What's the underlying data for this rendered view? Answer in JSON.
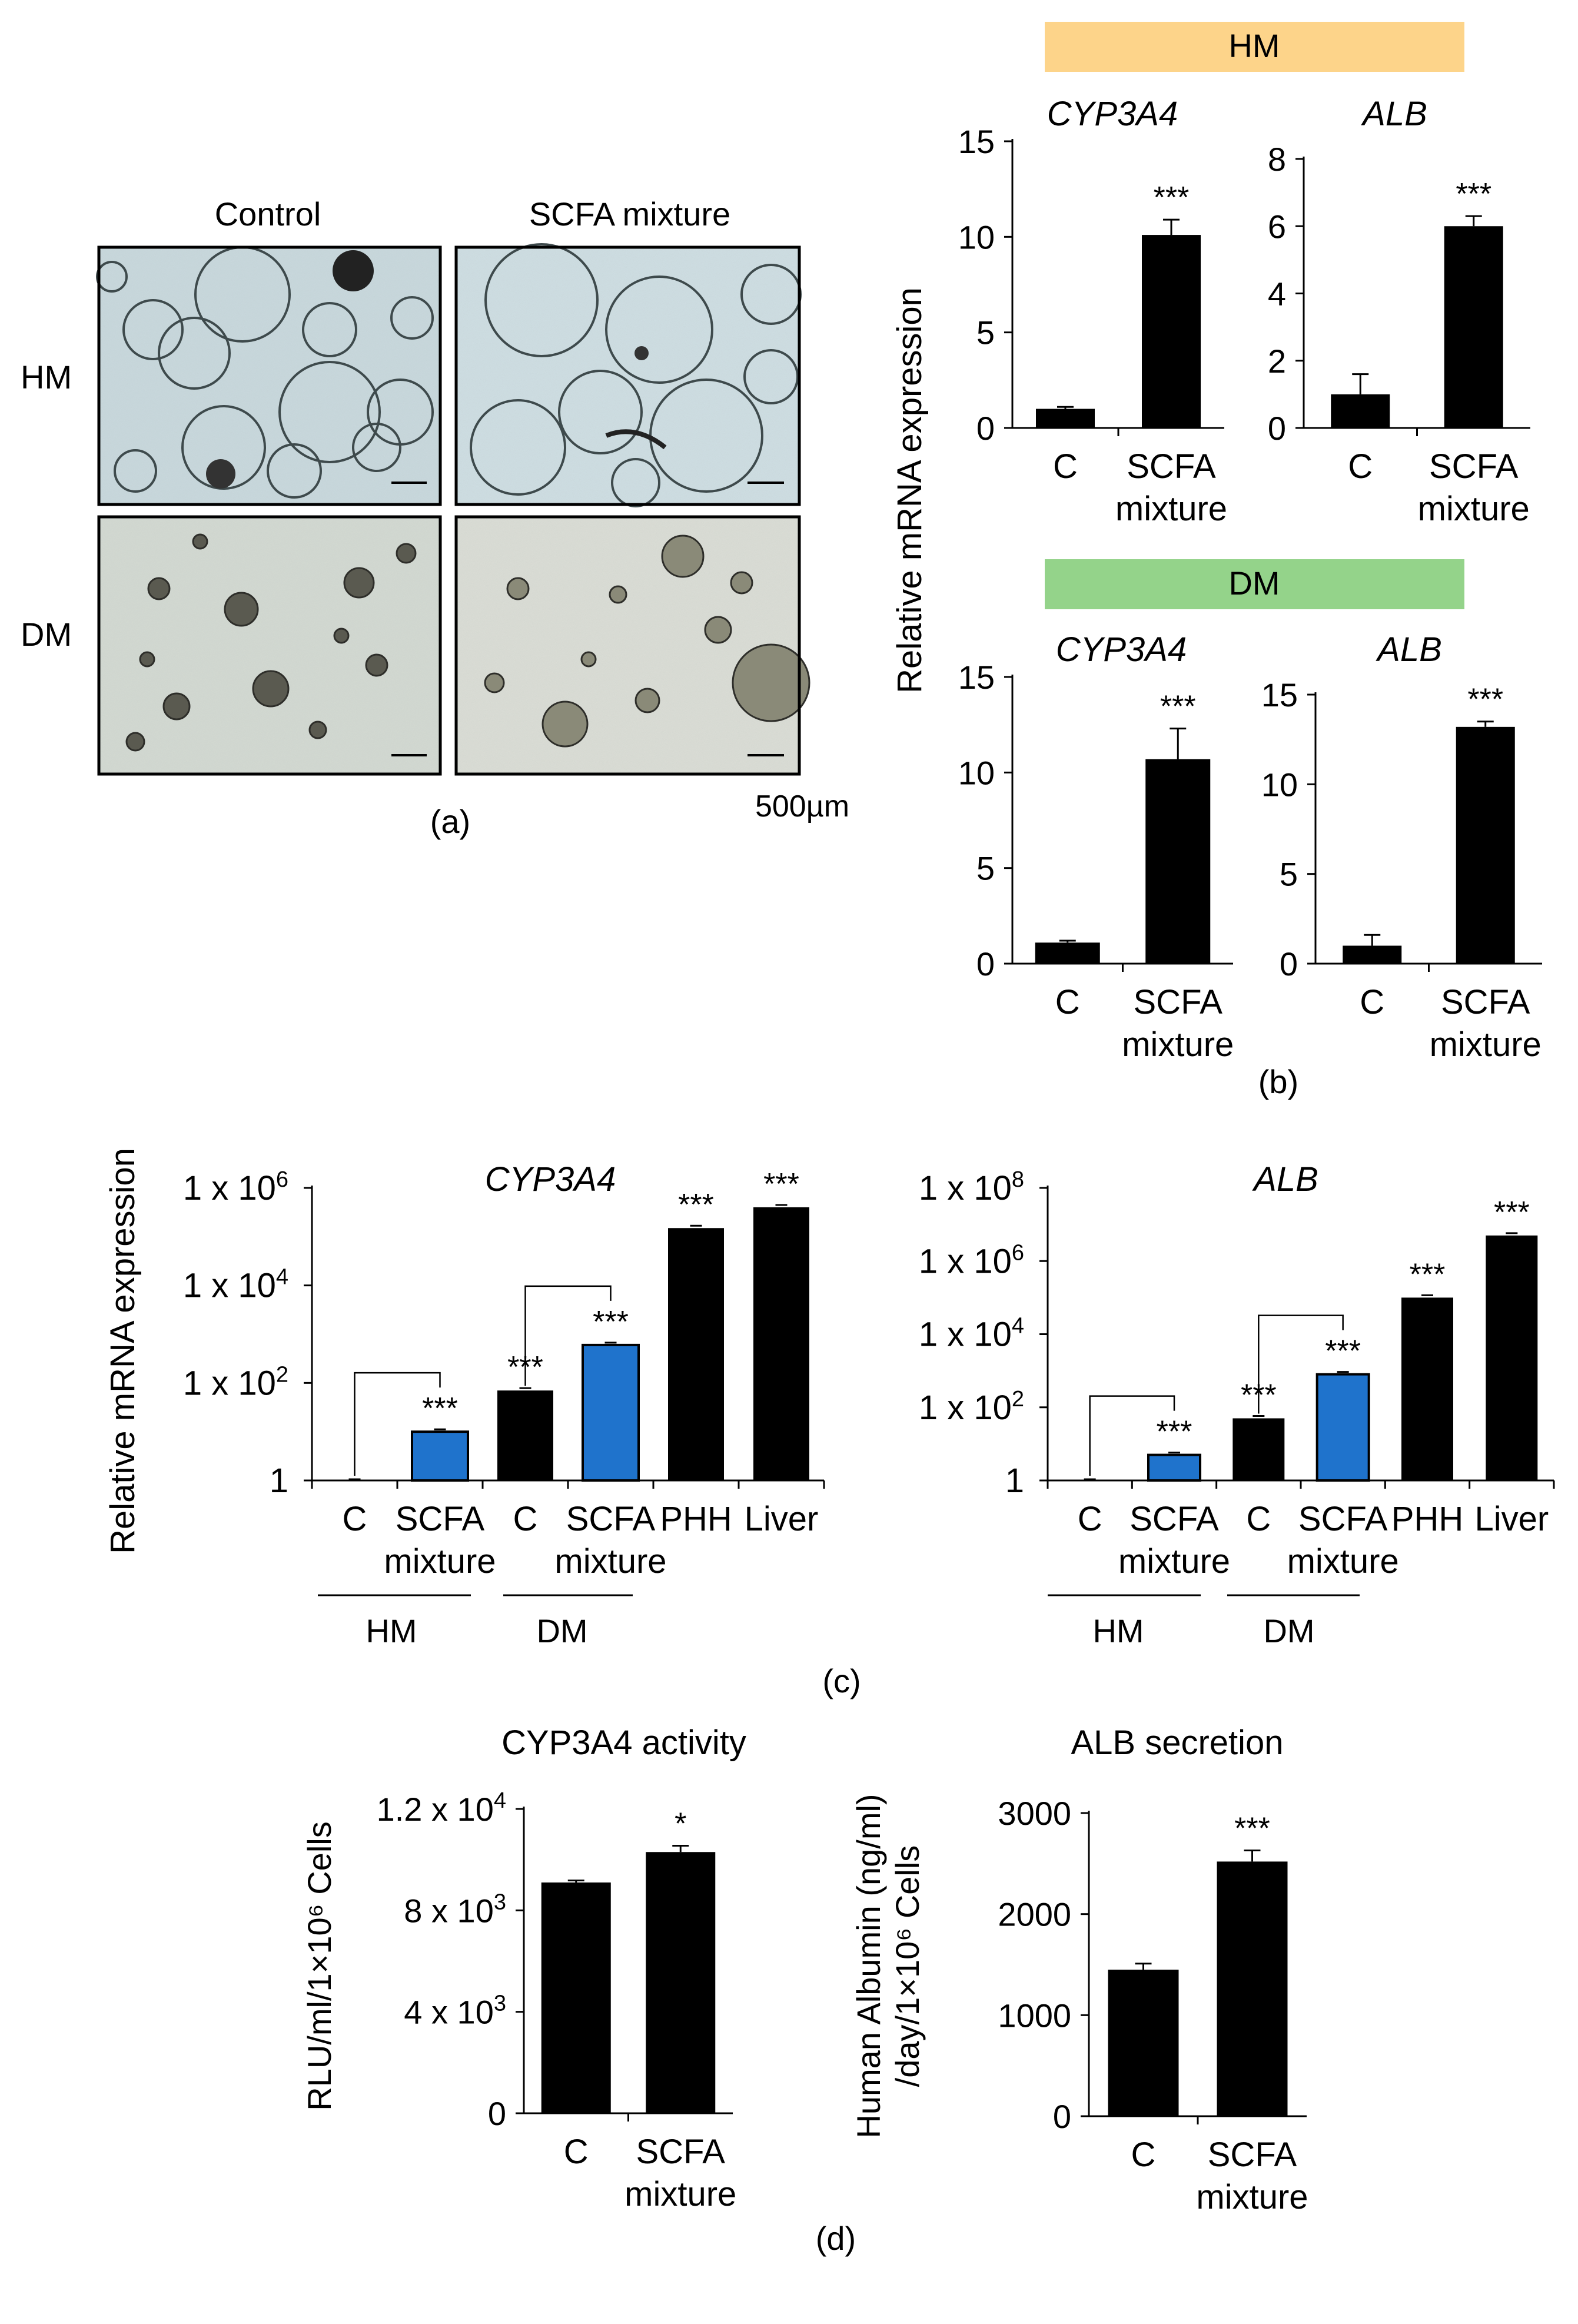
{
  "panel_a": {
    "col_labels": [
      "Control",
      "SCFA mixture"
    ],
    "row_labels": [
      "HM",
      "DM"
    ],
    "scale_bar": "500µm",
    "caption": "(a)"
  },
  "panel_b": {
    "ylabel": "Relative mRNA expression",
    "caption": "(b)",
    "banners": [
      {
        "label": "HM",
        "color": "#FDD48A"
      },
      {
        "label": "DM",
        "color": "#94D38A"
      }
    ]
  },
  "panel_c": {
    "ylabel": "Relative mRNA expression",
    "caption": "(c)",
    "group_labels": [
      "HM",
      "DM"
    ]
  },
  "panel_d": {
    "caption": "(d)"
  },
  "colors": {
    "black_bar": "#000000",
    "blue_bar": "#1F73CC"
  },
  "chart_data": [
    {
      "id": "b_hm_cyp",
      "type": "bar",
      "panel": "b",
      "title": "CYP3A4",
      "group": "HM",
      "categories": [
        "C",
        "SCFA mixture"
      ],
      "values": [
        1.0,
        10.1
      ],
      "errors": [
        0.1,
        0.8
      ],
      "ylim": [
        0,
        15
      ],
      "yticks": [
        0,
        5,
        10,
        15
      ],
      "ytick_labels": [
        "0",
        "5",
        "10",
        "15"
      ],
      "significance": [
        "",
        "***"
      ]
    },
    {
      "id": "b_hm_alb",
      "type": "bar",
      "panel": "b",
      "title": "ALB",
      "group": "HM",
      "categories": [
        "C",
        "SCFA mixture"
      ],
      "values": [
        1.0,
        6.0
      ],
      "errors": [
        0.6,
        0.3
      ],
      "ylim": [
        0,
        8
      ],
      "yticks": [
        0,
        2,
        4,
        6,
        8
      ],
      "ytick_labels": [
        "0",
        "2",
        "4",
        "6",
        "8"
      ],
      "significance": [
        "",
        "***"
      ]
    },
    {
      "id": "b_dm_cyp",
      "type": "bar",
      "panel": "b",
      "title": "CYP3A4",
      "group": "DM",
      "categories": [
        "C",
        "SCFA mixture"
      ],
      "values": [
        1.1,
        10.7
      ],
      "errors": [
        0.1,
        1.6
      ],
      "ylim": [
        0,
        15
      ],
      "yticks": [
        0,
        5,
        10,
        15
      ],
      "ytick_labels": [
        "0",
        "5",
        "10",
        "15"
      ],
      "significance": [
        "",
        "***"
      ]
    },
    {
      "id": "b_dm_alb",
      "type": "bar",
      "panel": "b",
      "title": "ALB",
      "group": "DM",
      "categories": [
        "C",
        "SCFA mixture"
      ],
      "values": [
        1.0,
        13.2
      ],
      "errors": [
        0.6,
        0.3
      ],
      "ylim": [
        0,
        15
      ],
      "yticks": [
        0,
        5,
        10,
        15
      ],
      "ytick_labels": [
        "0",
        "5",
        "10",
        "15"
      ],
      "significance": [
        "",
        "***"
      ]
    },
    {
      "id": "c_cyp",
      "type": "bar",
      "panel": "c",
      "title": "CYP3A4",
      "yscale": "log",
      "categories": [
        "C",
        "SCFA mixture",
        "C",
        "SCFA mixture",
        "PHH",
        "Liver"
      ],
      "values": [
        1,
        10,
        70,
        600,
        150000,
        400000
      ],
      "bar_colors": [
        "black",
        "blue",
        "black",
        "blue",
        "black",
        "black"
      ],
      "significance": [
        "",
        "***",
        "***",
        "***",
        "***",
        "***"
      ],
      "ylim": [
        1,
        1000000
      ],
      "yticks": [
        {
          "v": 1,
          "base": "1",
          "exp": ""
        },
        {
          "v": 100,
          "base": "1 x 10",
          "exp": "2"
        },
        {
          "v": 10000,
          "base": "1 x 10",
          "exp": "4"
        },
        {
          "v": 1000000,
          "base": "1 x 10",
          "exp": "6"
        }
      ]
    },
    {
      "id": "c_alb",
      "type": "bar",
      "panel": "c",
      "title": "ALB",
      "yscale": "log",
      "categories": [
        "C",
        "SCFA mixture",
        "C",
        "SCFA mixture",
        "PHH",
        "Liver"
      ],
      "values": [
        1,
        5,
        50,
        800,
        100000,
        5000000
      ],
      "bar_colors": [
        "black",
        "blue",
        "black",
        "blue",
        "black",
        "black"
      ],
      "significance": [
        "",
        "***",
        "***",
        "***",
        "***",
        "***"
      ],
      "ylim": [
        1,
        100000000
      ],
      "yticks": [
        {
          "v": 1,
          "base": "1",
          "exp": ""
        },
        {
          "v": 100,
          "base": "1 x 10",
          "exp": "2"
        },
        {
          "v": 10000,
          "base": "1 x 10",
          "exp": "4"
        },
        {
          "v": 1000000,
          "base": "1 x 10",
          "exp": "6"
        },
        {
          "v": 100000000,
          "base": "1 x 10",
          "exp": "8"
        }
      ]
    },
    {
      "id": "d_cyp",
      "type": "bar",
      "panel": "d",
      "title": "CYP3A4 activity",
      "ylabel": "RLU/ml/1×10⁶ Cells",
      "categories": [
        "C",
        "SCFA mixture"
      ],
      "values": [
        9100,
        10300
      ],
      "errors": [
        80,
        250
      ],
      "ylim": [
        0,
        12000
      ],
      "yticks": [
        {
          "v": 0,
          "base": "0",
          "exp": ""
        },
        {
          "v": 4000,
          "base": "4 x 10",
          "exp": "3"
        },
        {
          "v": 8000,
          "base": "8 x 10",
          "exp": "3"
        },
        {
          "v": 12000,
          "base": "1.2 x 10",
          "exp": "4"
        }
      ],
      "significance": [
        "",
        "*"
      ]
    },
    {
      "id": "d_alb",
      "type": "bar",
      "panel": "d",
      "title": "ALB secretion",
      "ylabel": [
        "Human Albumin (ng/ml)",
        "/day/1×10⁶ Cells"
      ],
      "categories": [
        "C",
        "SCFA mixture"
      ],
      "values": [
        1450,
        2520
      ],
      "errors": [
        60,
        110
      ],
      "ylim": [
        0,
        3000
      ],
      "yticks": [
        0,
        1000,
        2000,
        3000
      ],
      "ytick_labels": [
        "0",
        "1000",
        "2000",
        "3000"
      ],
      "significance": [
        "",
        "***"
      ]
    }
  ]
}
